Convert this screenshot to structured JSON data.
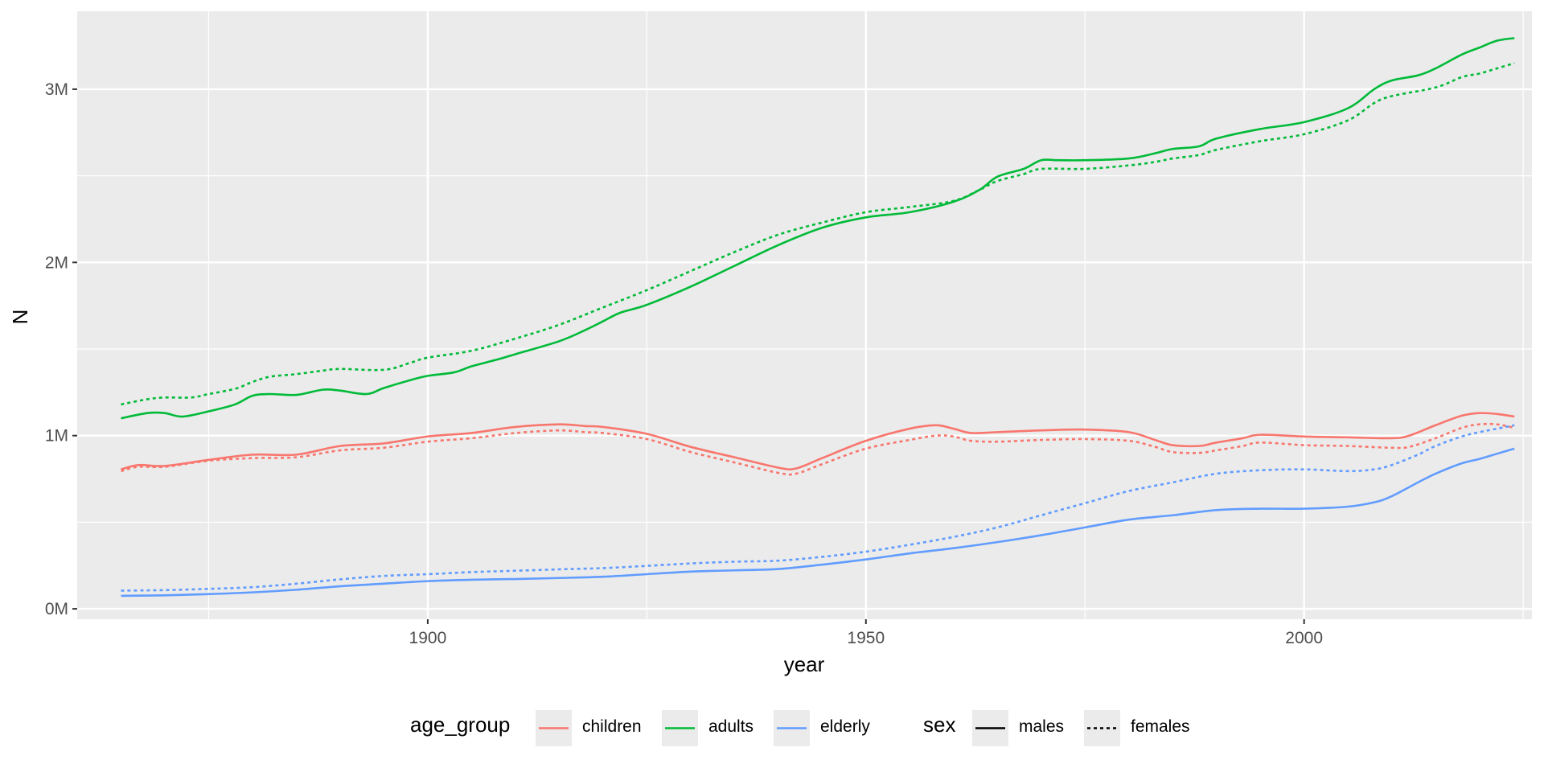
{
  "chart_data": {
    "type": "line",
    "title": "",
    "xlabel": "year",
    "ylabel": "N",
    "xlim": [
      1860,
      2026
    ],
    "ylim": [
      -60000,
      3450000
    ],
    "x_ticks": [
      1900,
      1950,
      2000
    ],
    "x_tick_labels": [
      "1900",
      "1950",
      "2000"
    ],
    "y_ticks": [
      0,
      1000000,
      2000000,
      3000000
    ],
    "y_tick_labels": [
      "0M",
      "1M",
      "2M",
      "3M"
    ],
    "grid": true,
    "legend_position": "bottom",
    "legend": {
      "age_group": {
        "title": "age_group",
        "entries": [
          {
            "label": "children",
            "color": "#F8766D"
          },
          {
            "label": "adults",
            "color": "#00BA38"
          },
          {
            "label": "elderly",
            "color": "#619CFF"
          }
        ]
      },
      "sex": {
        "title": "sex",
        "entries": [
          {
            "label": "males",
            "linetype": "solid"
          },
          {
            "label": "females",
            "linetype": "dotted"
          }
        ]
      }
    },
    "series": [
      {
        "age_group": "children",
        "sex": "males",
        "color": "#F8766D",
        "linetype": "solid",
        "points": [
          [
            1865,
            805000
          ],
          [
            1867,
            830000
          ],
          [
            1870,
            825000
          ],
          [
            1875,
            860000
          ],
          [
            1880,
            890000
          ],
          [
            1885,
            890000
          ],
          [
            1890,
            940000
          ],
          [
            1895,
            955000
          ],
          [
            1900,
            995000
          ],
          [
            1905,
            1015000
          ],
          [
            1910,
            1050000
          ],
          [
            1915,
            1065000
          ],
          [
            1918,
            1055000
          ],
          [
            1920,
            1050000
          ],
          [
            1925,
            1010000
          ],
          [
            1930,
            935000
          ],
          [
            1935,
            875000
          ],
          [
            1940,
            815000
          ],
          [
            1942,
            810000
          ],
          [
            1945,
            870000
          ],
          [
            1950,
            970000
          ],
          [
            1955,
            1040000
          ],
          [
            1958,
            1060000
          ],
          [
            1960,
            1040000
          ],
          [
            1962,
            1015000
          ],
          [
            1965,
            1020000
          ],
          [
            1970,
            1030000
          ],
          [
            1975,
            1035000
          ],
          [
            1980,
            1020000
          ],
          [
            1983,
            975000
          ],
          [
            1985,
            945000
          ],
          [
            1988,
            940000
          ],
          [
            1990,
            960000
          ],
          [
            1993,
            985000
          ],
          [
            1995,
            1005000
          ],
          [
            2000,
            995000
          ],
          [
            2005,
            990000
          ],
          [
            2010,
            985000
          ],
          [
            2012,
            1000000
          ],
          [
            2015,
            1060000
          ],
          [
            2018,
            1115000
          ],
          [
            2020,
            1130000
          ],
          [
            2022,
            1125000
          ],
          [
            2024,
            1110000
          ]
        ]
      },
      {
        "age_group": "children",
        "sex": "females",
        "color": "#F8766D",
        "linetype": "dotted",
        "points": [
          [
            1865,
            795000
          ],
          [
            1867,
            820000
          ],
          [
            1870,
            820000
          ],
          [
            1875,
            855000
          ],
          [
            1880,
            870000
          ],
          [
            1885,
            875000
          ],
          [
            1890,
            915000
          ],
          [
            1895,
            930000
          ],
          [
            1900,
            965000
          ],
          [
            1905,
            985000
          ],
          [
            1910,
            1015000
          ],
          [
            1915,
            1030000
          ],
          [
            1918,
            1020000
          ],
          [
            1920,
            1015000
          ],
          [
            1925,
            980000
          ],
          [
            1930,
            905000
          ],
          [
            1935,
            845000
          ],
          [
            1940,
            785000
          ],
          [
            1942,
            780000
          ],
          [
            1945,
            835000
          ],
          [
            1950,
            925000
          ],
          [
            1955,
            975000
          ],
          [
            1958,
            1000000
          ],
          [
            1960,
            995000
          ],
          [
            1962,
            970000
          ],
          [
            1965,
            965000
          ],
          [
            1970,
            975000
          ],
          [
            1975,
            980000
          ],
          [
            1980,
            970000
          ],
          [
            1983,
            935000
          ],
          [
            1985,
            905000
          ],
          [
            1988,
            900000
          ],
          [
            1990,
            915000
          ],
          [
            1993,
            940000
          ],
          [
            1995,
            960000
          ],
          [
            2000,
            945000
          ],
          [
            2005,
            940000
          ],
          [
            2010,
            930000
          ],
          [
            2012,
            935000
          ],
          [
            2015,
            985000
          ],
          [
            2018,
            1045000
          ],
          [
            2020,
            1065000
          ],
          [
            2022,
            1065000
          ],
          [
            2024,
            1045000
          ]
        ]
      },
      {
        "age_group": "adults",
        "sex": "males",
        "color": "#00BA38",
        "linetype": "solid",
        "points": [
          [
            1865,
            1100000
          ],
          [
            1868,
            1130000
          ],
          [
            1870,
            1130000
          ],
          [
            1872,
            1110000
          ],
          [
            1875,
            1140000
          ],
          [
            1878,
            1180000
          ],
          [
            1880,
            1230000
          ],
          [
            1882,
            1240000
          ],
          [
            1885,
            1235000
          ],
          [
            1888,
            1265000
          ],
          [
            1890,
            1260000
          ],
          [
            1893,
            1240000
          ],
          [
            1895,
            1275000
          ],
          [
            1898,
            1320000
          ],
          [
            1900,
            1345000
          ],
          [
            1903,
            1365000
          ],
          [
            1905,
            1400000
          ],
          [
            1908,
            1440000
          ],
          [
            1910,
            1470000
          ],
          [
            1915,
            1545000
          ],
          [
            1918,
            1610000
          ],
          [
            1920,
            1660000
          ],
          [
            1922,
            1710000
          ],
          [
            1925,
            1755000
          ],
          [
            1930,
            1860000
          ],
          [
            1935,
            1980000
          ],
          [
            1940,
            2100000
          ],
          [
            1945,
            2200000
          ],
          [
            1950,
            2260000
          ],
          [
            1955,
            2290000
          ],
          [
            1960,
            2350000
          ],
          [
            1963,
            2420000
          ],
          [
            1965,
            2495000
          ],
          [
            1968,
            2540000
          ],
          [
            1970,
            2590000
          ],
          [
            1972,
            2590000
          ],
          [
            1975,
            2590000
          ],
          [
            1980,
            2600000
          ],
          [
            1983,
            2630000
          ],
          [
            1985,
            2655000
          ],
          [
            1988,
            2670000
          ],
          [
            1990,
            2715000
          ],
          [
            1995,
            2770000
          ],
          [
            2000,
            2810000
          ],
          [
            2005,
            2890000
          ],
          [
            2008,
            3000000
          ],
          [
            2010,
            3050000
          ],
          [
            2013,
            3080000
          ],
          [
            2015,
            3120000
          ],
          [
            2018,
            3200000
          ],
          [
            2020,
            3240000
          ],
          [
            2022,
            3280000
          ],
          [
            2024,
            3295000
          ]
        ]
      },
      {
        "age_group": "adults",
        "sex": "females",
        "color": "#00BA38",
        "linetype": "dotted",
        "points": [
          [
            1865,
            1180000
          ],
          [
            1868,
            1210000
          ],
          [
            1870,
            1220000
          ],
          [
            1873,
            1220000
          ],
          [
            1875,
            1240000
          ],
          [
            1878,
            1270000
          ],
          [
            1880,
            1310000
          ],
          [
            1882,
            1340000
          ],
          [
            1885,
            1355000
          ],
          [
            1888,
            1375000
          ],
          [
            1890,
            1385000
          ],
          [
            1895,
            1380000
          ],
          [
            1898,
            1420000
          ],
          [
            1900,
            1450000
          ],
          [
            1905,
            1490000
          ],
          [
            1910,
            1560000
          ],
          [
            1915,
            1640000
          ],
          [
            1920,
            1740000
          ],
          [
            1925,
            1840000
          ],
          [
            1930,
            1950000
          ],
          [
            1935,
            2060000
          ],
          [
            1940,
            2160000
          ],
          [
            1945,
            2230000
          ],
          [
            1950,
            2290000
          ],
          [
            1955,
            2320000
          ],
          [
            1960,
            2355000
          ],
          [
            1963,
            2420000
          ],
          [
            1965,
            2470000
          ],
          [
            1968,
            2510000
          ],
          [
            1970,
            2540000
          ],
          [
            1975,
            2540000
          ],
          [
            1980,
            2560000
          ],
          [
            1983,
            2580000
          ],
          [
            1985,
            2600000
          ],
          [
            1988,
            2620000
          ],
          [
            1990,
            2650000
          ],
          [
            1995,
            2700000
          ],
          [
            2000,
            2740000
          ],
          [
            2005,
            2820000
          ],
          [
            2008,
            2920000
          ],
          [
            2010,
            2960000
          ],
          [
            2015,
            3010000
          ],
          [
            2018,
            3070000
          ],
          [
            2020,
            3090000
          ],
          [
            2022,
            3120000
          ],
          [
            2024,
            3150000
          ]
        ]
      },
      {
        "age_group": "elderly",
        "sex": "males",
        "color": "#619CFF",
        "linetype": "solid",
        "points": [
          [
            1865,
            75000
          ],
          [
            1870,
            78000
          ],
          [
            1875,
            85000
          ],
          [
            1880,
            95000
          ],
          [
            1885,
            110000
          ],
          [
            1890,
            130000
          ],
          [
            1895,
            145000
          ],
          [
            1900,
            160000
          ],
          [
            1905,
            168000
          ],
          [
            1910,
            172000
          ],
          [
            1915,
            178000
          ],
          [
            1920,
            185000
          ],
          [
            1925,
            200000
          ],
          [
            1930,
            215000
          ],
          [
            1935,
            222000
          ],
          [
            1940,
            230000
          ],
          [
            1945,
            255000
          ],
          [
            1950,
            285000
          ],
          [
            1955,
            320000
          ],
          [
            1960,
            350000
          ],
          [
            1965,
            385000
          ],
          [
            1970,
            425000
          ],
          [
            1975,
            470000
          ],
          [
            1980,
            515000
          ],
          [
            1985,
            540000
          ],
          [
            1990,
            570000
          ],
          [
            1995,
            578000
          ],
          [
            2000,
            578000
          ],
          [
            2005,
            590000
          ],
          [
            2008,
            615000
          ],
          [
            2010,
            650000
          ],
          [
            2013,
            730000
          ],
          [
            2015,
            780000
          ],
          [
            2018,
            840000
          ],
          [
            2020,
            865000
          ],
          [
            2022,
            895000
          ],
          [
            2024,
            925000
          ]
        ]
      },
      {
        "age_group": "elderly",
        "sex": "females",
        "color": "#619CFF",
        "linetype": "dotted",
        "points": [
          [
            1865,
            105000
          ],
          [
            1870,
            108000
          ],
          [
            1875,
            115000
          ],
          [
            1880,
            125000
          ],
          [
            1885,
            145000
          ],
          [
            1890,
            170000
          ],
          [
            1895,
            190000
          ],
          [
            1900,
            200000
          ],
          [
            1905,
            212000
          ],
          [
            1910,
            220000
          ],
          [
            1915,
            228000
          ],
          [
            1920,
            235000
          ],
          [
            1925,
            248000
          ],
          [
            1930,
            262000
          ],
          [
            1935,
            272000
          ],
          [
            1940,
            278000
          ],
          [
            1945,
            300000
          ],
          [
            1950,
            330000
          ],
          [
            1955,
            370000
          ],
          [
            1960,
            415000
          ],
          [
            1965,
            470000
          ],
          [
            1970,
            540000
          ],
          [
            1975,
            610000
          ],
          [
            1980,
            680000
          ],
          [
            1985,
            730000
          ],
          [
            1990,
            780000
          ],
          [
            1995,
            800000
          ],
          [
            2000,
            805000
          ],
          [
            2005,
            795000
          ],
          [
            2008,
            805000
          ],
          [
            2010,
            830000
          ],
          [
            2013,
            890000
          ],
          [
            2015,
            940000
          ],
          [
            2018,
            995000
          ],
          [
            2020,
            1020000
          ],
          [
            2022,
            1040000
          ],
          [
            2024,
            1060000
          ]
        ]
      }
    ]
  }
}
